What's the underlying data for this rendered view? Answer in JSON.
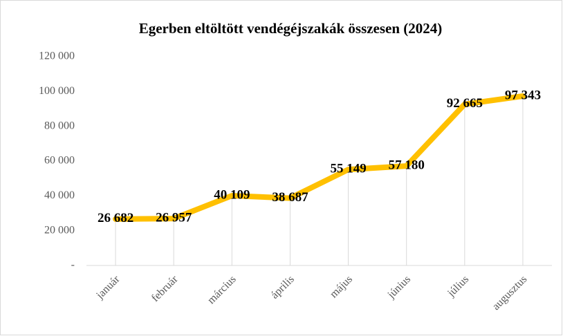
{
  "chart_data": {
    "type": "line",
    "title": "Egerben eltöltött vendégéjszakák összesen (2024)",
    "categories": [
      "január",
      "február",
      "március",
      "április",
      "május",
      "június",
      "július",
      "augusztus"
    ],
    "series": [
      {
        "name": "vendégéjszakák",
        "color": "#ffc000",
        "values": [
          26682,
          26957,
          40109,
          38687,
          55149,
          57180,
          92665,
          97343
        ],
        "value_labels": [
          "26 682",
          "26 957",
          "40 109",
          "38 687",
          "55 149",
          "57 180",
          "92 665",
          "97 343"
        ]
      }
    ],
    "ylim": [
      0,
      120000
    ],
    "yticks": [
      {
        "value": 0,
        "label": "-"
      },
      {
        "value": 20000,
        "label": "20 000"
      },
      {
        "value": 40000,
        "label": "40 000"
      },
      {
        "value": 60000,
        "label": "60 000"
      },
      {
        "value": 80000,
        "label": "80 000"
      },
      {
        "value": 100000,
        "label": "100 000"
      },
      {
        "value": 120000,
        "label": "120 000"
      }
    ],
    "drop_lines": true
  }
}
